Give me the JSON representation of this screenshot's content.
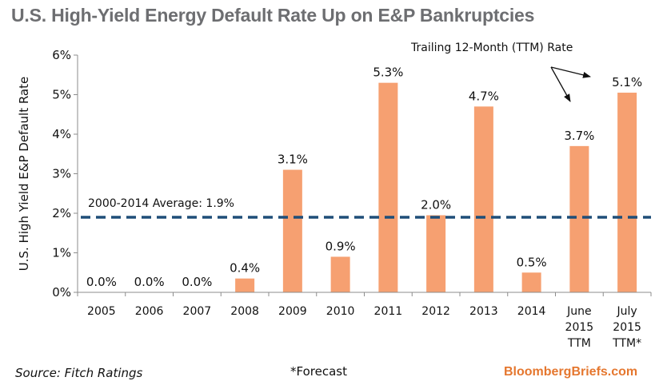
{
  "title": "U.S. High-Yield Energy Default Rate Up on E&P Bankruptcies",
  "source": "Source: Fitch Ratings",
  "footnote": "*Forecast",
  "brand": "BloombergBriefs.com",
  "colors": {
    "bar": "#f6a071",
    "average_line": "#1f4e79",
    "axis": "#8c8c8c",
    "title": "#6d6e71",
    "brand": "#e5772f"
  },
  "chart_data": {
    "type": "bar",
    "ylabel": "U.S. High Yield E&P Default Rate",
    "xlabel": "",
    "ylim": [
      0,
      6
    ],
    "y_ticks": [
      0,
      1,
      2,
      3,
      4,
      5,
      6
    ],
    "y_tick_labels": [
      "0%",
      "1%",
      "2%",
      "3%",
      "4%",
      "5%",
      "6%"
    ],
    "categories": [
      [
        "2005"
      ],
      [
        "2006"
      ],
      [
        "2007"
      ],
      [
        "2008"
      ],
      [
        "2009"
      ],
      [
        "2010"
      ],
      [
        "2011"
      ],
      [
        "2012"
      ],
      [
        "2013"
      ],
      [
        "2014"
      ],
      [
        "June",
        "2015",
        "TTM"
      ],
      [
        "July",
        "2015",
        "TTM*"
      ]
    ],
    "values": [
      0.0,
      0.0,
      0.0,
      0.35,
      3.1,
      0.9,
      5.3,
      1.95,
      4.7,
      0.5,
      3.7,
      5.05
    ],
    "data_labels": [
      "0.0%",
      "0.0%",
      "0.0%",
      "0.4%",
      "3.1%",
      "0.9%",
      "5.3%",
      "2.0%",
      "4.7%",
      "0.5%",
      "3.7%",
      "5.1%"
    ],
    "reference_line": {
      "value": 1.9,
      "label": "2000-2014 Average: 1.9%",
      "style": "dashed"
    },
    "annotation": "Trailing 12-Month (TTM) Rate",
    "grid": false,
    "legend": "none"
  }
}
